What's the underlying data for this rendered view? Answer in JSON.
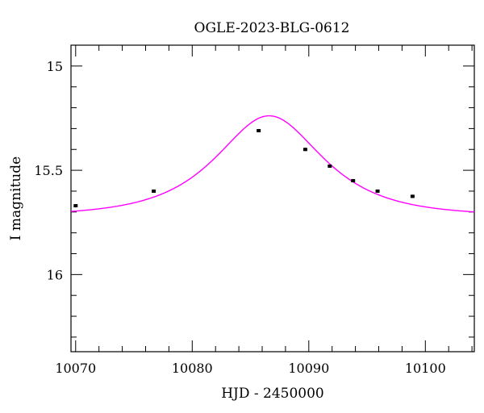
{
  "chart_data": {
    "type": "scatter",
    "title": "OGLE-2023-BLG-0612",
    "xlabel": "HJD - 2450000",
    "ylabel": "I magnitude",
    "xlim": [
      10069.6,
      10104.2
    ],
    "ylim": [
      16.37,
      14.9
    ],
    "y_inverted": true,
    "x_ticks": [
      10070,
      10080,
      10090,
      10100
    ],
    "y_ticks": [
      15,
      15.5,
      16
    ],
    "y_tick_labels": [
      "15",
      "15.5",
      "16"
    ],
    "grid": false,
    "points": [
      {
        "x": 10070.0,
        "y": 15.67,
        "err": 0.008
      },
      {
        "x": 10076.7,
        "y": 15.6,
        "err": 0.008
      },
      {
        "x": 10085.7,
        "y": 15.31,
        "err": 0.008
      },
      {
        "x": 10089.7,
        "y": 15.4,
        "err": 0.008
      },
      {
        "x": 10091.8,
        "y": 15.48,
        "err": 0.008
      },
      {
        "x": 10093.8,
        "y": 15.55,
        "err": 0.008
      },
      {
        "x": 10095.9,
        "y": 15.6,
        "err": 0.008
      },
      {
        "x": 10098.9,
        "y": 15.625,
        "err": 0.008
      }
    ],
    "model": {
      "name": "microlensing-fit",
      "color": "#ff00ff",
      "t0": 10086.6,
      "tE": 6.3,
      "u0": 0.78,
      "baseline_mag": 15.72
    },
    "colors": {
      "points": "#000000",
      "axes": "#000000",
      "background": "#ffffff"
    }
  }
}
